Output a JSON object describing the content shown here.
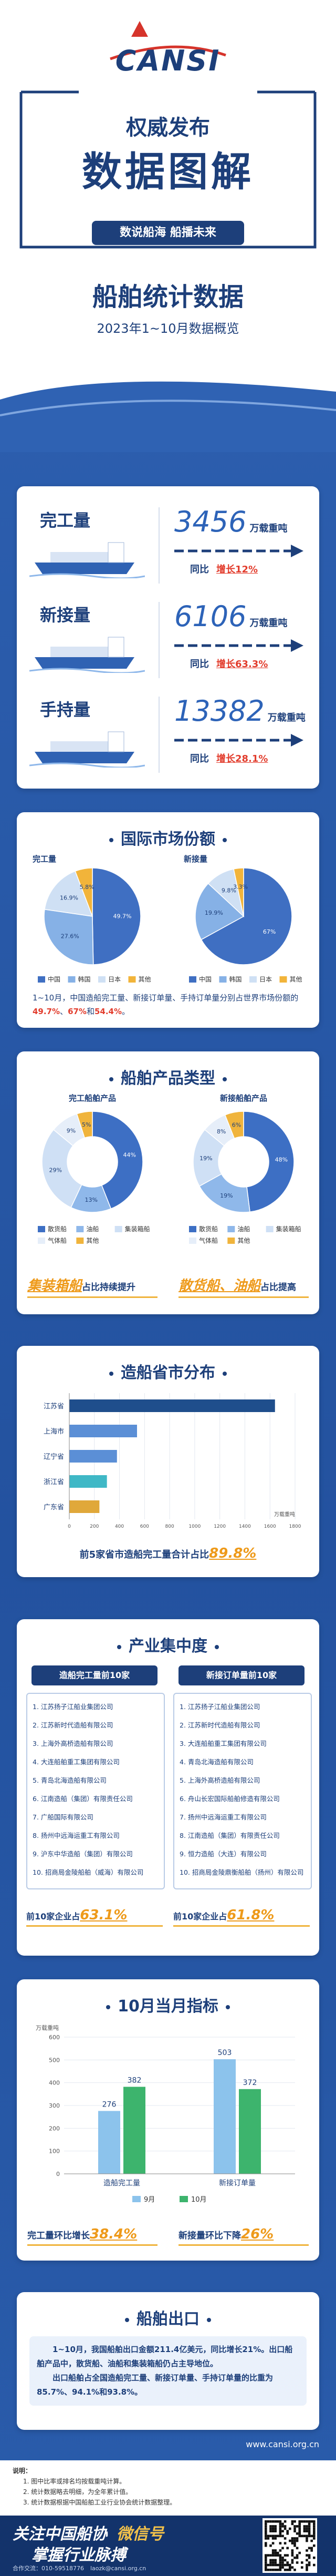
{
  "header": {
    "logo": "CANSI",
    "badge": "权威发布",
    "headline": "数据图解",
    "slogan": "数说船海 船播未来",
    "title": "船舶统计数据",
    "subtitle": "2023年1~10月数据概览"
  },
  "stats": [
    {
      "label": "完工量",
      "value": 3456,
      "unit": "万载重吨",
      "compare": "同比",
      "change": "增长12%"
    },
    {
      "label": "新接量",
      "value": 6106,
      "unit": "万载重吨",
      "compare": "同比",
      "change": "增长63.3%"
    },
    {
      "label": "手持量",
      "value": 13382,
      "unit": "万载重吨",
      "compare": "同比",
      "change": "增长28.1%"
    }
  ],
  "sections": {
    "market": {
      "title": "国际市场份额",
      "note": [
        "1~10月，中国造船完工量、新接订单量、手持订单量分别占世界市场份额的",
        "49.7%",
        "、",
        "67%",
        "和",
        "54.4%",
        "。"
      ]
    },
    "products": {
      "title": "船舶产品类型",
      "notes": [
        [
          "集装箱船",
          "占比持续提升"
        ],
        [
          "散货船、油船",
          "占比提高"
        ]
      ]
    },
    "provinces": {
      "title": "造船省市分布",
      "note": [
        "前5家省市造船完工量合计占比",
        "89.8%"
      ]
    },
    "concentration": {
      "title": "产业集中度",
      "lists": [
        {
          "title": "造船完工量前10家",
          "items": [
            "1. 江苏扬子江船业集团公司",
            "2. 江苏新时代造船有限公司",
            "3. 上海外高桥造船有限公司",
            "4. 大连船舶重工集团有限公司",
            "5. 青岛北海造船有限公司",
            "6. 江南造船（集团）有限责任公司",
            "7. 广船国际有限公司",
            "8. 扬州中远海运重工有限公司",
            "9. 沪东中华造船（集团）有限公司",
            "10. 招商局金陵船舶（威海）有限公司"
          ],
          "note": [
            "前10家企业占",
            "63.1%"
          ]
        },
        {
          "title": "新接订单量前10家",
          "items": [
            "1. 江苏扬子江船业集团公司",
            "2. 江苏新时代造船有限公司",
            "3. 大连船舶重工集团有限公司",
            "4. 青岛北海造船有限公司",
            "5. 上海外高桥造船有限公司",
            "6. 舟山长宏国际船舶修造有限公司",
            "7. 扬州中远海运重工有限公司",
            "8. 江南造船（集团）有限责任公司",
            "9. 恒力造船（大连）有限公司",
            "10. 招商局金陵鼎衡船舶（扬州）有限公司"
          ],
          "note": [
            "前10家企业占",
            "61.8%"
          ]
        }
      ]
    },
    "monthly": {
      "title": "10月当月指标",
      "notes": [
        [
          "完工量",
          "环比增长",
          "38.4%"
        ],
        [
          "新接量",
          "环比下降",
          "26%"
        ]
      ]
    },
    "export": {
      "title": "船舶出口",
      "paragraphs": [
        "1~10月，我国船舶出口金额211.4亿美元，同比增长21%。出口船舶产品中，散货船、油船和集装箱船仍占主导地位。",
        "出口船舶占全国造船完工量、新接订单量、手持订单量的比重为85.7%、94.1%和93.8%。"
      ]
    }
  },
  "website": "www.cansi.org.cn",
  "footer": {
    "notes_title": "说明：",
    "notes": [
      "1. 图中比率或排名均按载重吨计算。",
      "2. 统计数据略去明细，为全年累计值。",
      "3. 统计数据根据中国船舶工业行业协会统计数据整理。"
    ],
    "follow": "关注中国船协",
    "wechat": "微信号",
    "slogan": "掌握行业脉搏",
    "contact": "合作交流：010-59518776",
    "email": "laozk@cansi.org.cn"
  },
  "chart_data": [
    {
      "type": "pie",
      "title": "完工量",
      "categories": [
        "中国",
        "韩国",
        "日本",
        "其他"
      ],
      "colors": [
        "#3f6fc2",
        "#86b1e6",
        "#cfe0f4",
        "#f2b43a"
      ],
      "values": [
        49.7,
        27.6,
        16.9,
        5.8
      ],
      "value_labels": [
        "49.7%",
        "27.6%",
        "16.9%",
        "5.8%"
      ]
    },
    {
      "type": "pie",
      "title": "新接量",
      "categories": [
        "中国",
        "韩国",
        "日本",
        "其他"
      ],
      "colors": [
        "#3f6fc2",
        "#86b1e6",
        "#cfe0f4",
        "#f2b43a"
      ],
      "values": [
        67,
        19.9,
        9.8,
        3.3
      ],
      "value_labels": [
        "67%",
        "19.9%",
        "9.8%",
        "3.3%"
      ]
    },
    {
      "type": "donut",
      "title": "完工船舶产品",
      "categories": [
        "散货船",
        "油船",
        "集装箱船",
        "气体船",
        "其他"
      ],
      "colors": [
        "#3d6fc4",
        "#8fb8ea",
        "#cfe0f5",
        "#e6eef9",
        "#f0b43c"
      ],
      "values": [
        44,
        13,
        29,
        9,
        5
      ],
      "value_labels": [
        "44%",
        "13%",
        "29%",
        "9%",
        "5%"
      ]
    },
    {
      "type": "donut",
      "title": "新接船舶产品",
      "categories": [
        "散货船",
        "油船",
        "集装箱船",
        "气体船",
        "其他"
      ],
      "colors": [
        "#3d6fc4",
        "#8fb8ea",
        "#cfe0f5",
        "#e6eef9",
        "#f0b43c"
      ],
      "values": [
        48,
        19,
        19,
        8,
        6
      ],
      "value_labels": [
        "48%",
        "19%",
        "19%",
        "8%",
        "6%"
      ]
    },
    {
      "type": "hbar",
      "categories": [
        "江苏省",
        "上海市",
        "辽宁省",
        "浙江省",
        "广东省"
      ],
      "values": [
        1640,
        540,
        380,
        300,
        240
      ],
      "colors": [
        "#1f4e8c",
        "#5b8fd6",
        "#5b8fd6",
        "#3fb8c6",
        "#e0a83a"
      ],
      "xlim": [
        0,
        1800
      ],
      "xticks": [
        0,
        200,
        400,
        600,
        800,
        1000,
        1200,
        1400,
        1600,
        1800
      ],
      "xlabel": "万载重吨",
      "grid": true
    },
    {
      "type": "bar",
      "categories": [
        "造船完工量",
        "新接订单量"
      ],
      "series": [
        {
          "name": "9月",
          "color": "#8cc3ec",
          "values": [
            276,
            503
          ]
        },
        {
          "name": "10月",
          "color": "#3db46d",
          "values": [
            382,
            372
          ]
        }
      ],
      "ylim": [
        0,
        600
      ],
      "yticks": [
        0,
        100,
        200,
        300,
        400,
        500,
        600
      ],
      "ylabel": "万载重吨",
      "grid": true
    }
  ]
}
